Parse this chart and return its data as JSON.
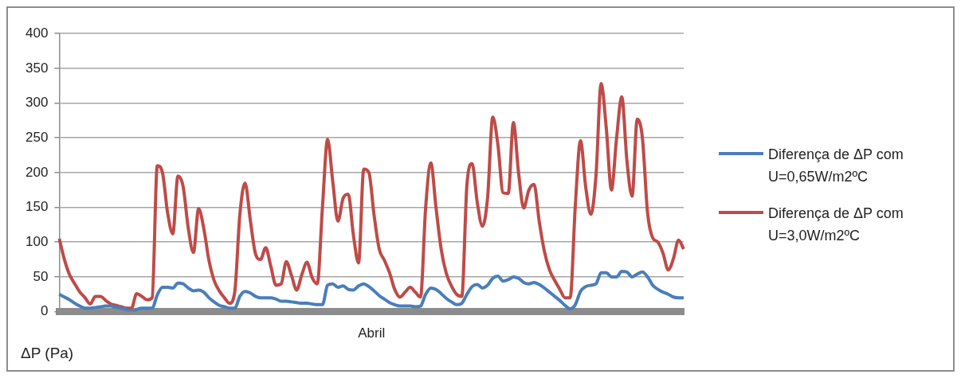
{
  "chart_data": {
    "type": "line",
    "xlabel": "Abril",
    "ylabel": "ΔP (Pa)",
    "categories": [
      null,
      null,
      null,
      null,
      null,
      null,
      null,
      null,
      null,
      null,
      null,
      null,
      null,
      null,
      null,
      null,
      null,
      null,
      null,
      null,
      null,
      null,
      null,
      null,
      null,
      null,
      null,
      null,
      null,
      null,
      null,
      null,
      null,
      null,
      null,
      null,
      null,
      null,
      null,
      null,
      null,
      null,
      null,
      null,
      null,
      null,
      null,
      null,
      null,
      null,
      null,
      null,
      null,
      null,
      null,
      null,
      null,
      null,
      null,
      null,
      null,
      null,
      null,
      null,
      null,
      null,
      null,
      null,
      null,
      null,
      null,
      null,
      null,
      null,
      null,
      null,
      null,
      null,
      null,
      null,
      null,
      null,
      null,
      null,
      null,
      null,
      null,
      null,
      null,
      null,
      null,
      null,
      null,
      null,
      null,
      null,
      null,
      null,
      null,
      null,
      null,
      null,
      null,
      null,
      null,
      null,
      null,
      null,
      null,
      null,
      null,
      null,
      null,
      null,
      null,
      null,
      null,
      null,
      null,
      null,
      null,
      null
    ],
    "series": [
      {
        "name": "Diferença de ΔP com U=0,65W/m2ºC",
        "color": "#4a7ebb",
        "values": [
          25,
          21,
          17,
          12,
          8,
          5,
          5,
          6,
          7,
          8,
          8,
          6,
          5,
          3,
          0,
          3,
          5,
          5,
          5,
          24,
          35,
          35,
          34,
          41,
          40,
          34,
          30,
          31,
          28,
          20,
          14,
          9,
          7,
          5,
          5,
          22,
          29,
          27,
          22,
          20,
          20,
          20,
          18,
          15,
          15,
          14,
          13,
          12,
          12,
          11,
          10,
          10,
          38,
          40,
          35,
          37,
          32,
          31,
          37,
          40,
          36,
          30,
          23,
          18,
          13,
          10,
          8,
          8,
          8,
          7,
          8,
          25,
          34,
          32,
          26,
          19,
          14,
          10,
          12,
          25,
          36,
          39,
          34,
          38,
          48,
          51,
          44,
          46,
          50,
          48,
          42,
          40,
          42,
          39,
          34,
          28,
          22,
          16,
          9,
          4,
          10,
          29,
          36,
          38,
          40,
          56,
          56,
          50,
          50,
          58,
          57,
          50,
          54,
          57,
          50,
          38,
          32,
          28,
          25,
          21,
          20,
          20
        ]
      },
      {
        "name": "Diferença de ΔP com U=3,0W/m2ºC",
        "color": "#be4b48",
        "values": [
          105,
          75,
          53,
          40,
          28,
          20,
          11,
          22,
          22,
          16,
          11,
          9,
          7,
          5,
          5,
          26,
          22,
          17,
          20,
          210,
          200,
          142,
          112,
          195,
          180,
          120,
          85,
          148,
          120,
          74,
          45,
          30,
          20,
          12,
          28,
          140,
          185,
          133,
          84,
          75,
          92,
          65,
          38,
          40,
          72,
          52,
          31,
          53,
          71,
          49,
          40,
          150,
          248,
          187,
          130,
          163,
          169,
          110,
          70,
          205,
          200,
          139,
          90,
          74,
          56,
          32,
          21,
          28,
          35,
          28,
          21,
          150,
          214,
          150,
          90,
          55,
          37,
          25,
          22,
          183,
          213,
          157,
          123,
          164,
          280,
          240,
          171,
          170,
          272,
          200,
          149,
          175,
          183,
          130,
          87,
          60,
          45,
          32,
          20,
          20,
          153,
          246,
          180,
          140,
          195,
          328,
          264,
          175,
          250,
          309,
          217,
          166,
          277,
          250,
          142,
          106,
          100,
          84,
          60,
          76,
          103,
          90
        ]
      }
    ],
    "ylim": [
      0,
      400
    ],
    "yticks": [
      0,
      50,
      100,
      150,
      200,
      250,
      300,
      350,
      400
    ],
    "grid": "y",
    "legend": "right",
    "tick_labels": "y",
    "line_style": "solid",
    "marker": "none"
  }
}
